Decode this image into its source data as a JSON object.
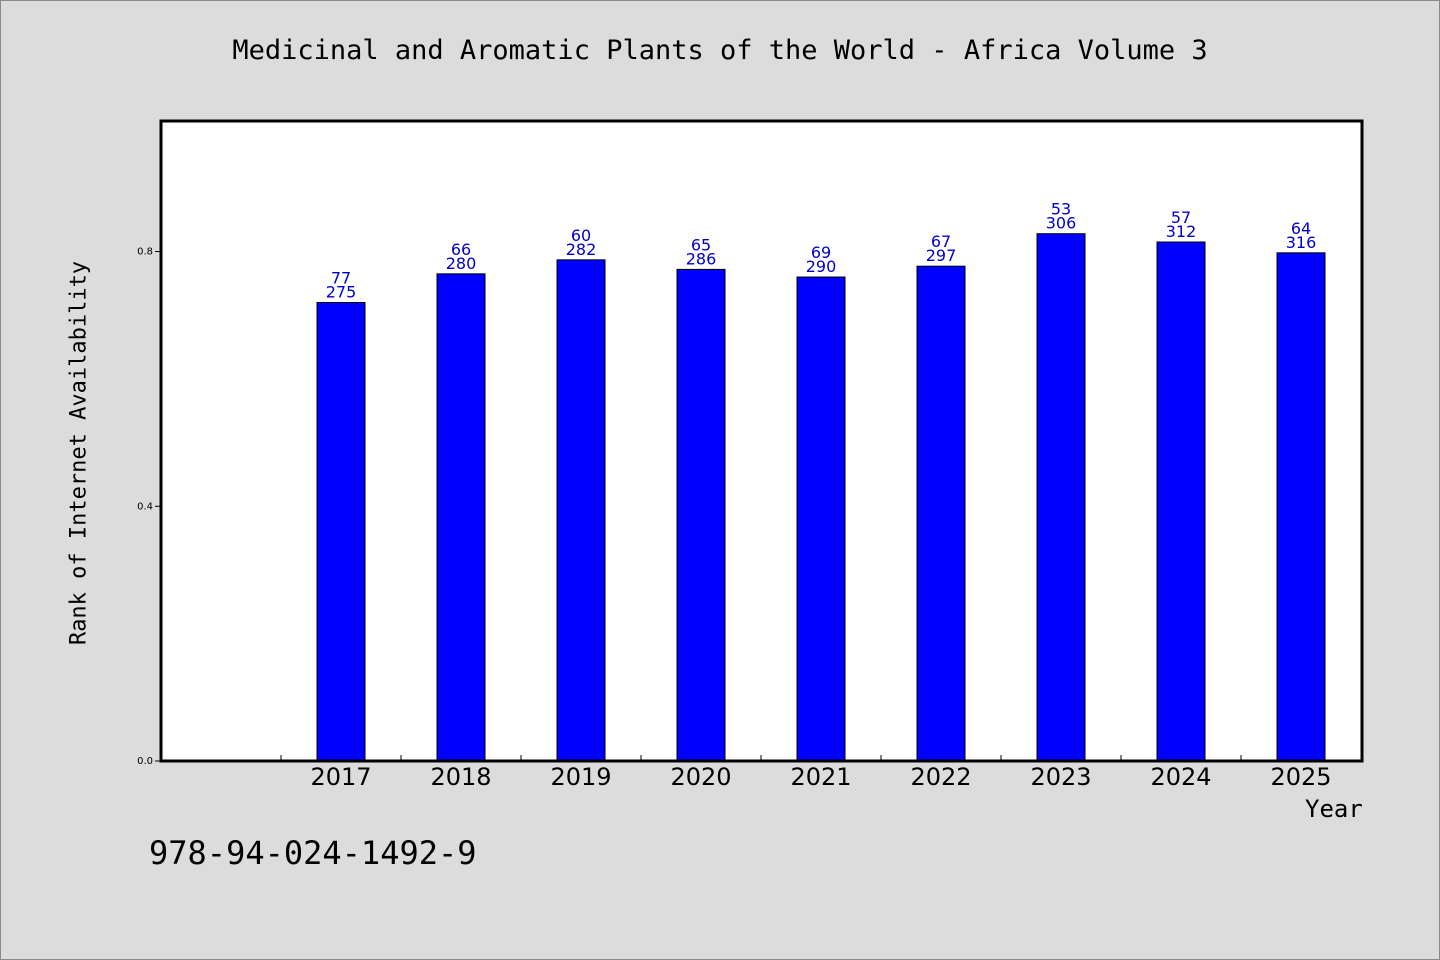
{
  "chart_data": {
    "type": "bar",
    "title": "Medicinal and Aromatic Plants of the World - Africa Volume 3",
    "xlabel": "Year",
    "ylabel": "Rank of Internet Availability",
    "categories": [
      "2017",
      "2018",
      "2019",
      "2020",
      "2021",
      "2022",
      "2023",
      "2024",
      "2025"
    ],
    "values": [
      0.72,
      0.765,
      0.787,
      0.772,
      0.76,
      0.777,
      0.828,
      0.815,
      0.798
    ],
    "label_top": [
      "77",
      "66",
      "60",
      "65",
      "69",
      "67",
      "53",
      "57",
      "64"
    ],
    "label_bottom": [
      "275",
      "280",
      "282",
      "286",
      "290",
      "297",
      "306",
      "312",
      "316"
    ],
    "yticks": [
      "0.0",
      "0.4",
      "0.8"
    ],
    "ytick_values": [
      0.0,
      0.4,
      0.8
    ],
    "ylim": [
      0,
      1.005
    ],
    "bar_color": "#0000ff",
    "label_color": "#0000cd",
    "grid": false
  },
  "footer": {
    "isbn": "978-94-024-1492-9"
  }
}
